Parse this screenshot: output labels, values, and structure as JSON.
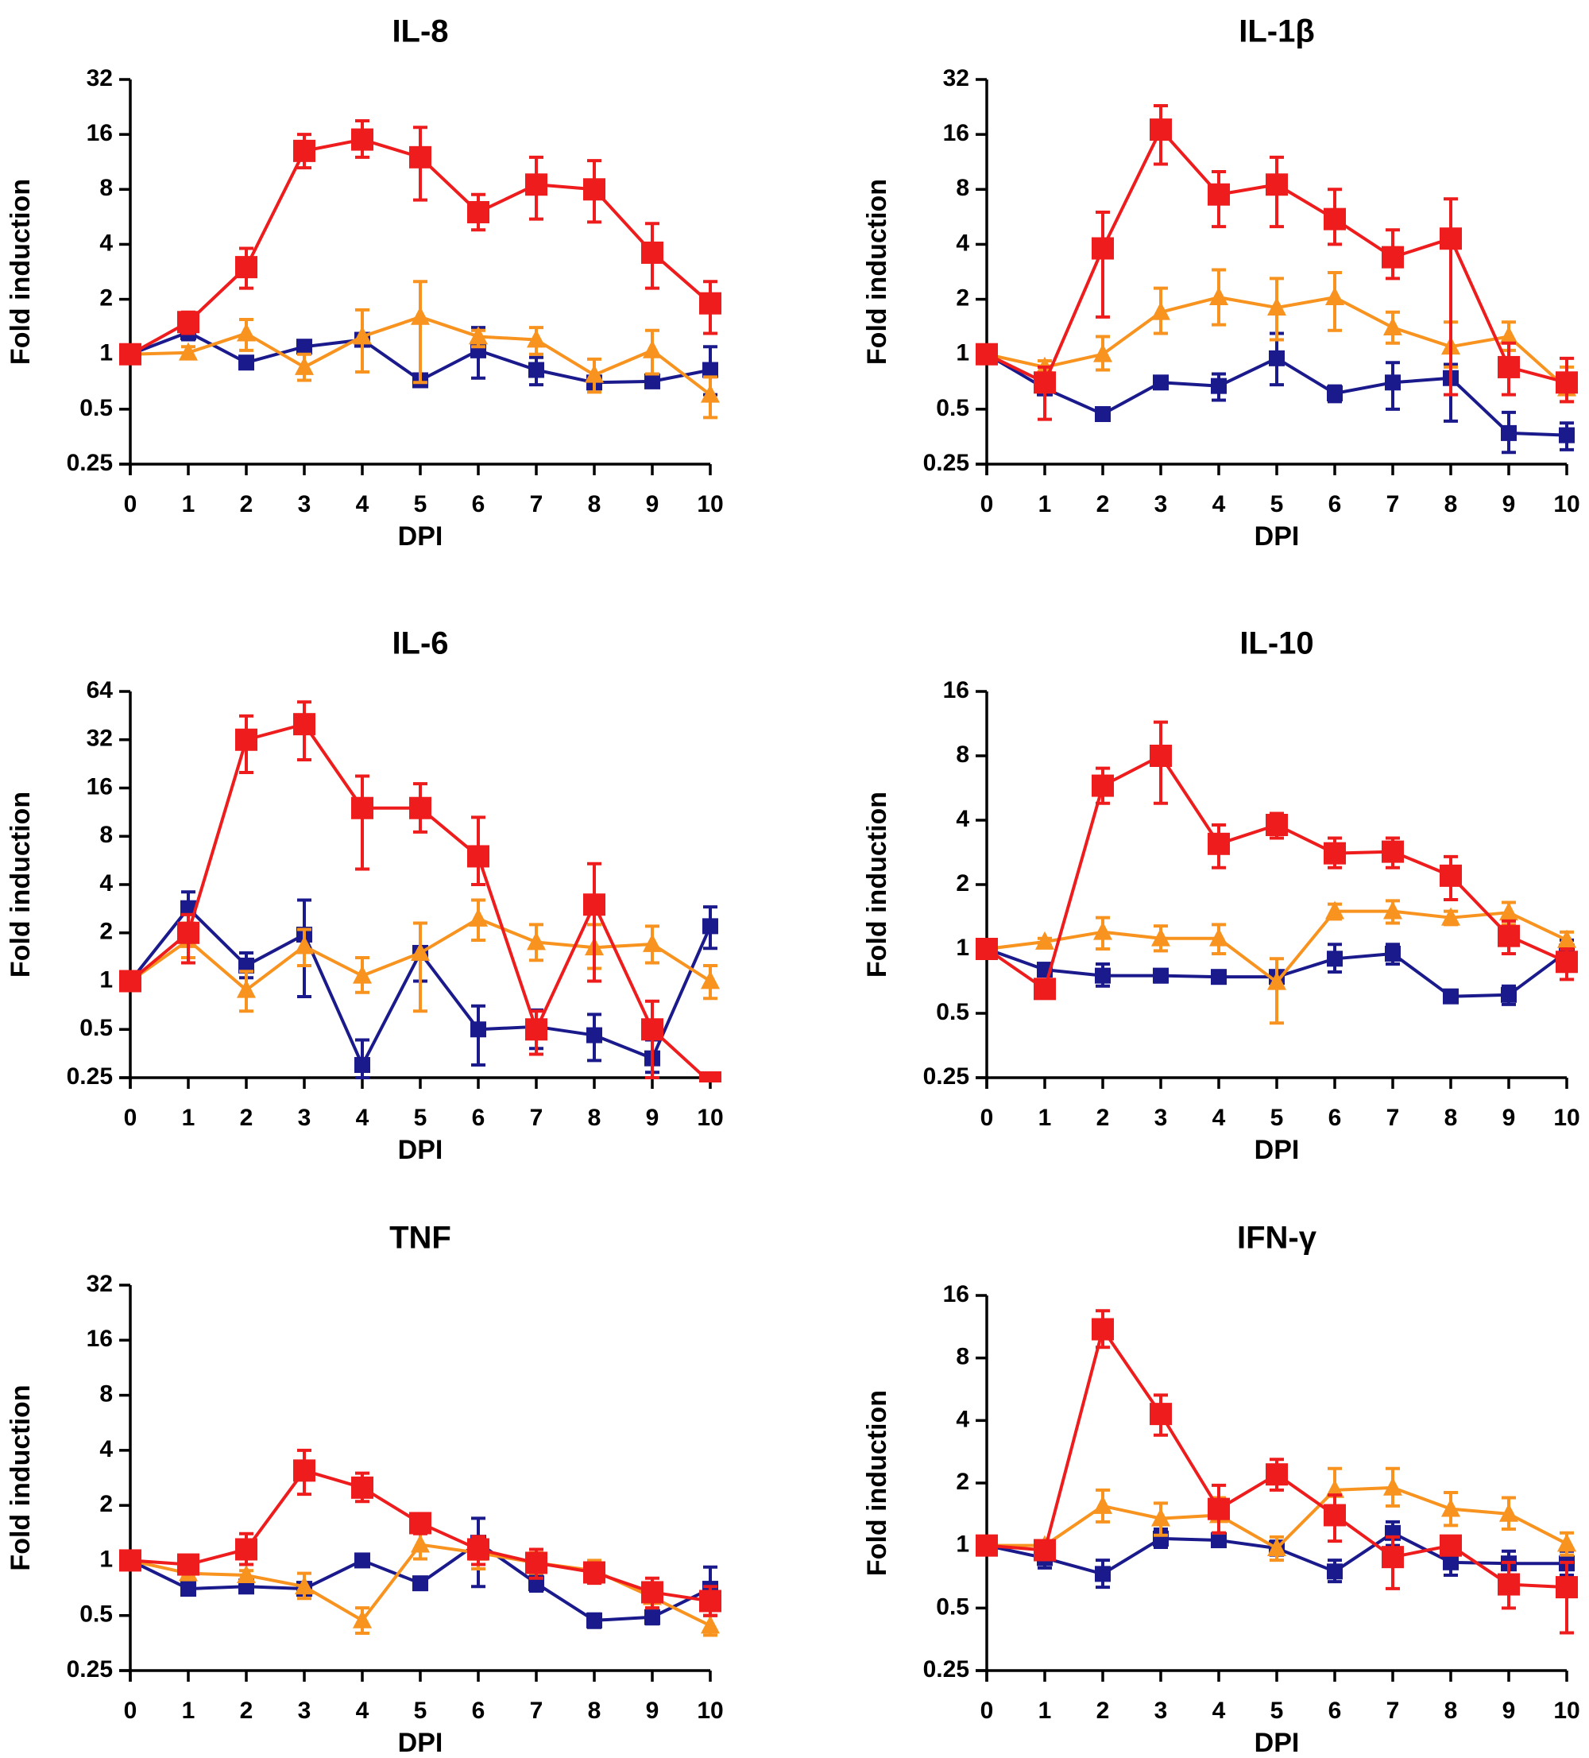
{
  "colors": {
    "red": "#ee1c1c",
    "navy": "#1a1a8c",
    "orange": "#f7931e",
    "axis": "#000000"
  },
  "chart_data": [
    {
      "type": "line",
      "title": "IL-8",
      "xlabel": "DPI",
      "ylabel": "Fold induction",
      "x": [
        0,
        1,
        2,
        3,
        4,
        5,
        6,
        7,
        8,
        9,
        10
      ],
      "yscale": "log2",
      "ylim": [
        0.25,
        32
      ],
      "yticks": [
        "0.25",
        "0.5",
        "1",
        "2",
        "4",
        "8",
        "16",
        "32"
      ],
      "series": [
        {
          "name": "red-squares",
          "marker": "square",
          "color": "red",
          "values": [
            1,
            1.5,
            3.0,
            13,
            15,
            12,
            6,
            8.5,
            8,
            3.6,
            1.9
          ],
          "err_low": [
            1,
            1.3,
            2.3,
            10.5,
            12,
            7,
            4.8,
            5.5,
            5.3,
            2.3,
            1.3
          ],
          "err_high": [
            1,
            1.7,
            3.8,
            16,
            19,
            17.5,
            7.5,
            12,
            11.5,
            5.2,
            2.5
          ]
        },
        {
          "name": "navy-squares",
          "marker": "square",
          "color": "navy",
          "values": [
            1,
            1.32,
            0.9,
            1.1,
            1.2,
            0.72,
            1.05,
            0.82,
            0.7,
            0.71,
            0.82
          ],
          "err_low": [
            1,
            1.2,
            0.88,
            1.05,
            1.15,
            0.68,
            0.74,
            0.68,
            0.66,
            0.66,
            0.6
          ],
          "err_high": [
            1,
            1.45,
            0.92,
            1.15,
            1.25,
            0.76,
            1.4,
            0.96,
            0.74,
            0.75,
            1.1
          ]
        },
        {
          "name": "orange-triangles",
          "marker": "triangle",
          "color": "orange",
          "values": [
            1,
            1.02,
            1.3,
            0.85,
            1.25,
            1.6,
            1.25,
            1.2,
            0.77,
            1.05,
            0.6
          ],
          "err_low": [
            1,
            0.95,
            1.05,
            0.72,
            0.8,
            0.7,
            1.1,
            1.0,
            0.62,
            0.78,
            0.45
          ],
          "err_high": [
            1,
            1.1,
            1.55,
            1.0,
            1.75,
            2.5,
            1.35,
            1.4,
            0.94,
            1.35,
            0.75
          ]
        }
      ]
    },
    {
      "type": "line",
      "title": "IL-1β",
      "xlabel": "DPI",
      "ylabel": "Fold induction",
      "x": [
        0,
        1,
        2,
        3,
        4,
        5,
        6,
        7,
        8,
        9,
        10
      ],
      "yscale": "log2",
      "ylim": [
        0.25,
        32
      ],
      "yticks": [
        "0.25",
        "0.5",
        "1",
        "2",
        "4",
        "8",
        "16",
        "32"
      ],
      "series": [
        {
          "name": "red-squares",
          "marker": "square",
          "color": "red",
          "values": [
            1,
            0.7,
            3.8,
            17,
            7.5,
            8.5,
            5.5,
            3.4,
            4.3,
            0.85,
            0.7
          ],
          "err_low": [
            1,
            0.44,
            1.6,
            11,
            5,
            5,
            4,
            2.6,
            0.6,
            0.6,
            0.55
          ],
          "err_high": [
            1,
            0.85,
            6,
            23,
            10,
            12,
            8,
            4.8,
            7.1,
            1.15,
            0.95
          ]
        },
        {
          "name": "navy-squares",
          "marker": "square",
          "color": "navy",
          "values": [
            1,
            0.65,
            0.47,
            0.7,
            0.67,
            0.95,
            0.61,
            0.7,
            0.74,
            0.37,
            0.36
          ],
          "err_low": [
            1,
            0.6,
            0.45,
            0.66,
            0.56,
            0.68,
            0.55,
            0.5,
            0.43,
            0.29,
            0.3
          ],
          "err_high": [
            1,
            0.72,
            0.49,
            0.74,
            0.78,
            1.3,
            0.67,
            0.9,
            0.88,
            0.48,
            0.42
          ]
        },
        {
          "name": "orange-triangles",
          "marker": "triangle",
          "color": "orange",
          "values": [
            1,
            0.85,
            1.0,
            1.7,
            2.05,
            1.8,
            2.05,
            1.4,
            1.1,
            1.25,
            0.65
          ],
          "err_low": [
            1,
            0.8,
            0.82,
            1.3,
            1.45,
            1.2,
            1.35,
            1.15,
            0.85,
            1.05,
            0.55
          ],
          "err_high": [
            1,
            0.92,
            1.25,
            2.3,
            2.9,
            2.6,
            2.8,
            1.7,
            1.5,
            1.5,
            0.85
          ]
        }
      ]
    },
    {
      "type": "line",
      "title": "IL-6",
      "xlabel": "DPI",
      "ylabel": "Fold induction",
      "x": [
        0,
        1,
        2,
        3,
        4,
        5,
        6,
        7,
        8,
        9,
        10
      ],
      "yscale": "log2",
      "ylim": [
        0.25,
        64
      ],
      "yticks": [
        "0.25",
        "0.5",
        "1",
        "2",
        "4",
        "8",
        "16",
        "32",
        "64"
      ],
      "series": [
        {
          "name": "red-squares",
          "marker": "square",
          "color": "red",
          "values": [
            1,
            2.0,
            32,
            40,
            12,
            12,
            6,
            0.5,
            3.0,
            0.5,
            0.22
          ],
          "err_low": [
            1,
            1.3,
            20,
            24,
            5,
            8.5,
            4,
            0.35,
            1.0,
            0.25,
            0.22
          ],
          "err_high": [
            1,
            2.6,
            45,
            55,
            19,
            17,
            10.5,
            0.65,
            5.4,
            0.75,
            0.22
          ]
        },
        {
          "name": "navy-squares",
          "marker": "square",
          "color": "navy",
          "values": [
            1,
            2.85,
            1.25,
            1.95,
            0.3,
            1.5,
            0.5,
            0.52,
            0.46,
            0.33,
            2.2
          ],
          "err_low": [
            1,
            2.2,
            1.05,
            0.8,
            0.25,
            1.0,
            0.3,
            0.38,
            0.32,
            0.27,
            1.6
          ],
          "err_high": [
            1,
            3.6,
            1.5,
            3.2,
            0.43,
            2.3,
            0.7,
            0.66,
            0.62,
            0.43,
            2.9
          ]
        },
        {
          "name": "orange-triangles",
          "marker": "triangle",
          "color": "orange",
          "values": [
            1,
            1.8,
            0.88,
            1.65,
            1.08,
            1.5,
            2.45,
            1.75,
            1.62,
            1.7,
            1.0
          ],
          "err_low": [
            1,
            1.4,
            0.65,
            1.25,
            0.85,
            0.65,
            1.8,
            1.35,
            1.2,
            1.3,
            0.78
          ],
          "err_high": [
            1,
            2.3,
            1.15,
            2.1,
            1.4,
            2.3,
            3.2,
            2.25,
            2.25,
            2.2,
            1.25
          ]
        }
      ]
    },
    {
      "type": "line",
      "title": "IL-10",
      "xlabel": "DPI",
      "ylabel": "Fold induction",
      "x": [
        0,
        1,
        2,
        3,
        4,
        5,
        6,
        7,
        8,
        9,
        10
      ],
      "yscale": "log2",
      "ylim": [
        0.25,
        16
      ],
      "yticks": [
        "0.25",
        "0.5",
        "1",
        "2",
        "4",
        "8",
        "16"
      ],
      "series": [
        {
          "name": "red-squares",
          "marker": "square",
          "color": "red",
          "values": [
            1,
            0.65,
            5.8,
            8.0,
            3.1,
            3.8,
            2.8,
            2.85,
            2.2,
            1.15,
            0.87
          ],
          "err_low": [
            1,
            0.6,
            4.8,
            4.8,
            2.4,
            3.3,
            2.4,
            2.4,
            1.7,
            0.95,
            0.72
          ],
          "err_high": [
            1,
            0.7,
            7,
            11.5,
            3.8,
            4.3,
            3.3,
            3.3,
            2.7,
            1.35,
            1.0
          ]
        },
        {
          "name": "navy-squares",
          "marker": "square",
          "color": "navy",
          "values": [
            1,
            0.8,
            0.75,
            0.75,
            0.74,
            0.74,
            0.9,
            0.95,
            0.6,
            0.61,
            0.97
          ],
          "err_low": [
            1,
            0.75,
            0.67,
            0.7,
            0.7,
            0.7,
            0.78,
            0.85,
            0.58,
            0.55,
            0.85
          ],
          "err_high": [
            1,
            0.85,
            0.85,
            0.8,
            0.78,
            0.78,
            1.05,
            1.05,
            0.62,
            0.67,
            1.1
          ]
        },
        {
          "name": "orange-triangles",
          "marker": "triangle",
          "color": "orange",
          "values": [
            1,
            1.08,
            1.2,
            1.12,
            1.12,
            0.7,
            1.5,
            1.5,
            1.4,
            1.48,
            1.1
          ],
          "err_low": [
            1,
            1.04,
            1.0,
            0.98,
            0.95,
            0.45,
            1.38,
            1.32,
            1.3,
            1.3,
            1.0
          ],
          "err_high": [
            1,
            1.12,
            1.4,
            1.28,
            1.3,
            0.9,
            1.62,
            1.68,
            1.5,
            1.65,
            1.2
          ]
        }
      ]
    },
    {
      "type": "line",
      "title": "TNF",
      "xlabel": "DPI",
      "ylabel": "Fold induction",
      "x": [
        0,
        1,
        2,
        3,
        4,
        5,
        6,
        7,
        8,
        9,
        10
      ],
      "yscale": "log2",
      "ylim": [
        0.25,
        32
      ],
      "yticks": [
        "0.25",
        "0.5",
        "1",
        "2",
        "4",
        "8",
        "16",
        "32"
      ],
      "series": [
        {
          "name": "red-squares",
          "marker": "square",
          "color": "red",
          "values": [
            1,
            0.95,
            1.15,
            3.1,
            2.5,
            1.6,
            1.15,
            0.97,
            0.86,
            0.67,
            0.6
          ],
          "err_low": [
            1,
            0.86,
            0.95,
            2.3,
            2.1,
            1.4,
            0.95,
            0.8,
            0.75,
            0.55,
            0.5
          ],
          "err_high": [
            1,
            1.05,
            1.4,
            4.0,
            3.0,
            1.8,
            1.35,
            1.15,
            0.97,
            0.8,
            0.72
          ]
        },
        {
          "name": "navy-squares",
          "marker": "square",
          "color": "navy",
          "values": [
            1,
            0.7,
            0.72,
            0.7,
            1.0,
            0.75,
            1.25,
            0.75,
            0.47,
            0.49,
            0.7
          ],
          "err_low": [
            1,
            0.65,
            0.67,
            0.66,
            0.95,
            0.7,
            0.72,
            0.68,
            0.43,
            0.45,
            0.5
          ],
          "err_high": [
            1,
            0.75,
            0.77,
            0.74,
            1.05,
            0.8,
            1.7,
            0.82,
            0.51,
            0.53,
            0.92
          ]
        },
        {
          "name": "orange-triangles",
          "marker": "triangle",
          "color": "orange",
          "values": [
            1,
            0.85,
            0.83,
            0.72,
            0.47,
            1.22,
            1.1,
            0.97,
            0.88,
            0.63,
            0.44
          ],
          "err_low": [
            1,
            0.8,
            0.78,
            0.62,
            0.4,
            1.02,
            0.9,
            0.85,
            0.78,
            0.55,
            0.39
          ],
          "err_high": [
            1,
            0.9,
            0.88,
            0.85,
            0.55,
            1.42,
            1.3,
            1.1,
            1.0,
            0.72,
            0.5
          ]
        }
      ]
    },
    {
      "type": "line",
      "title": "IFN-γ",
      "xlabel": "DPI",
      "ylabel": "Fold induction",
      "x": [
        0,
        1,
        2,
        3,
        4,
        5,
        6,
        7,
        8,
        9,
        10
      ],
      "yscale": "log2",
      "ylim": [
        0.25,
        16
      ],
      "yticks": [
        "0.25",
        "0.5",
        "1",
        "2",
        "4",
        "8",
        "16"
      ],
      "series": [
        {
          "name": "red-squares",
          "marker": "square",
          "color": "red",
          "values": [
            1,
            0.95,
            11,
            4.3,
            1.5,
            2.2,
            1.4,
            0.88,
            1.0,
            0.65,
            0.63
          ],
          "err_low": [
            1,
            0.9,
            9,
            3.4,
            1.15,
            1.85,
            1.05,
            0.62,
            0.9,
            0.5,
            0.38
          ],
          "err_high": [
            1,
            1.0,
            13.5,
            5.3,
            1.95,
            2.6,
            1.75,
            1.1,
            1.1,
            0.83,
            0.83
          ]
        },
        {
          "name": "navy-squares",
          "marker": "square",
          "color": "navy",
          "values": [
            1,
            0.87,
            0.73,
            1.08,
            1.06,
            0.97,
            0.75,
            1.15,
            0.83,
            0.82,
            0.82
          ],
          "err_low": [
            1,
            0.78,
            0.63,
            0.98,
            1.0,
            0.9,
            0.67,
            1.0,
            0.72,
            0.72,
            0.72
          ],
          "err_high": [
            1,
            0.96,
            0.85,
            1.2,
            1.13,
            1.05,
            0.85,
            1.3,
            0.94,
            0.94,
            0.94
          ]
        },
        {
          "name": "orange-triangles",
          "marker": "triangle",
          "color": "orange",
          "values": [
            1,
            1.0,
            1.55,
            1.35,
            1.4,
            0.97,
            1.85,
            1.9,
            1.5,
            1.42,
            1.02
          ],
          "err_low": [
            1,
            0.95,
            1.3,
            1.12,
            1.15,
            0.85,
            1.45,
            1.55,
            1.25,
            1.2,
            0.9
          ],
          "err_high": [
            1,
            1.05,
            1.85,
            1.6,
            1.7,
            1.1,
            2.35,
            2.35,
            1.8,
            1.7,
            1.15
          ]
        }
      ]
    }
  ]
}
